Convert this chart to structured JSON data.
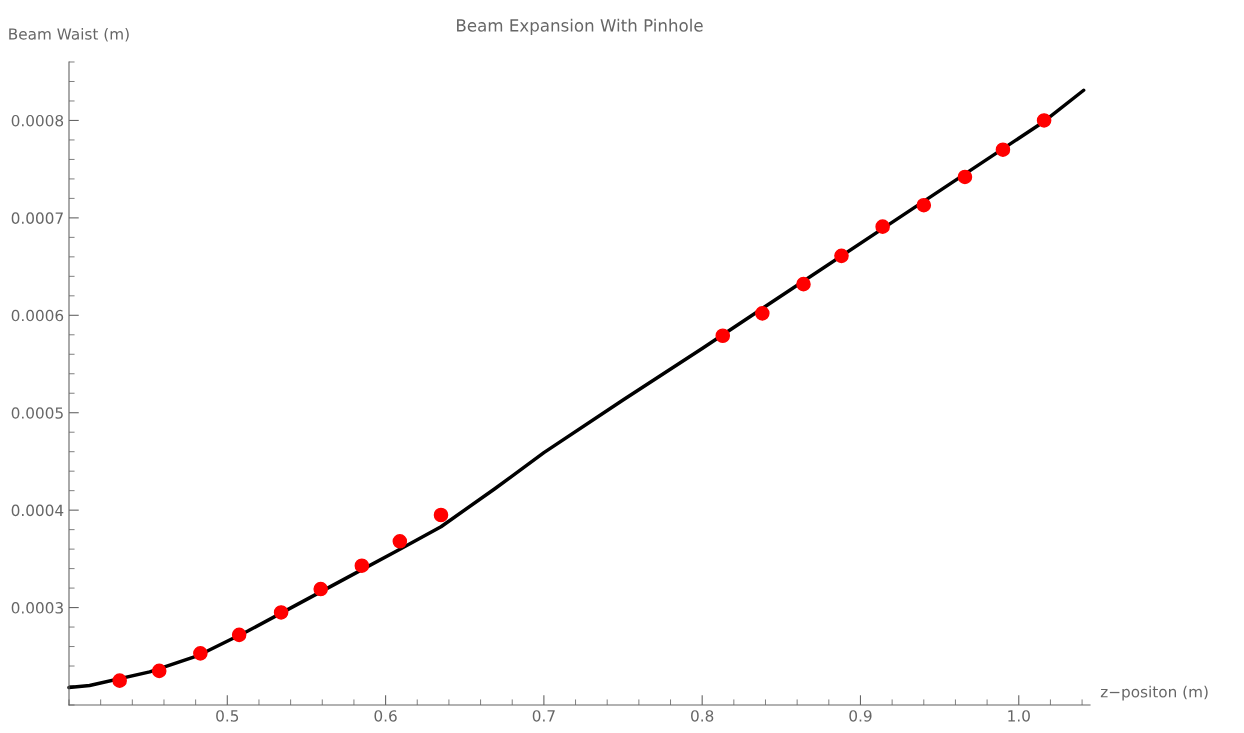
{
  "chart_data": {
    "type": "scatter",
    "title": "Beam Expansion With Pinhole",
    "xlabel": "z−positon (m)",
    "ylabel": "Beam Waist (m)",
    "xlim": [
      0.4,
      1.045
    ],
    "ylim": [
      0.0002,
      0.00086
    ],
    "xticks": [
      0.5,
      0.6,
      0.7,
      0.8,
      0.9,
      {
        "value": 1.0,
        "label": "1.0"
      }
    ],
    "yticks": [
      0.0003,
      0.0004,
      0.0005,
      0.0006,
      0.0007,
      0.0008
    ],
    "grid": false,
    "legend": false,
    "series": [
      {
        "type": "line",
        "color": "#000000",
        "marker": "none",
        "line_style": "solid",
        "x": [
          0.4,
          0.413,
          0.451,
          0.482,
          0.513,
          0.544,
          0.576,
          0.607,
          0.635,
          0.669,
          0.7,
          0.75,
          0.8,
          0.914,
          1.016,
          1.041
        ],
        "values": [
          0.000218,
          0.00022,
          0.000234,
          0.000251,
          0.000276,
          0.000303,
          0.000331,
          0.000358,
          0.000383,
          0.000422,
          0.000459,
          0.000513,
          0.000566,
          0.000689,
          0.000799,
          0.000831
        ]
      },
      {
        "color": "#ff0000",
        "marker": "circle",
        "x": [
          0.432,
          0.457,
          0.483,
          0.5075,
          0.534,
          0.559,
          0.585,
          0.609,
          0.635,
          0.813,
          0.838,
          0.864,
          0.888,
          0.914,
          0.94,
          0.966,
          0.99,
          1.016
        ],
        "values": [
          0.000225,
          0.000235,
          0.000253,
          0.000272,
          0.000295,
          0.000319,
          0.000343,
          0.000368,
          0.000395,
          0.000579,
          0.000602,
          0.000632,
          0.000661,
          0.000691,
          0.000713,
          0.000742,
          0.00077,
          0.0008
        ]
      }
    ]
  }
}
